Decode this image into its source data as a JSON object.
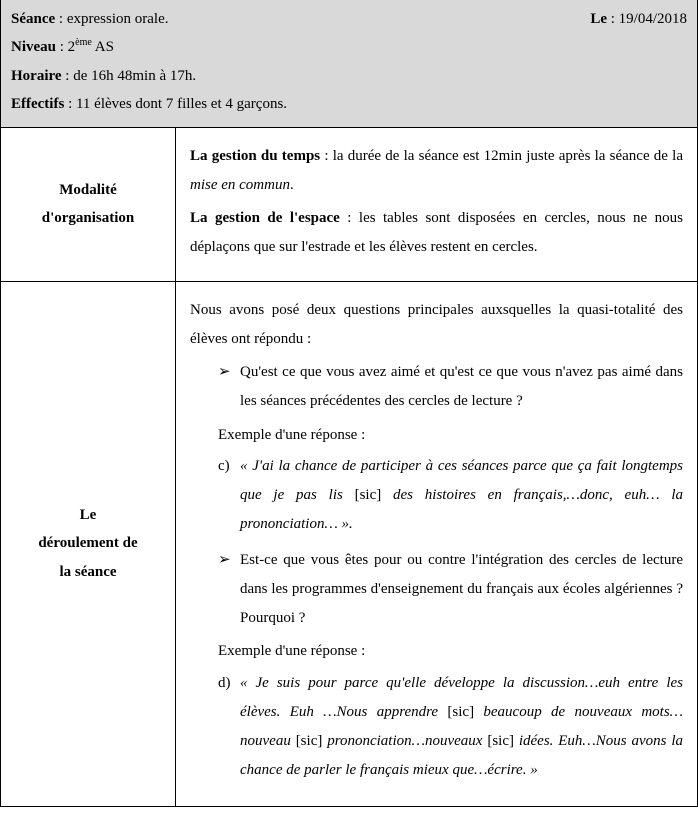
{
  "header": {
    "seance_label": "Séance",
    "seance_value": ": expression orale.",
    "date_label": "Le",
    "date_value": ": 19/04/2018",
    "niveau_label": "Niveau",
    "niveau_value": ": 2",
    "niveau_sup": "ème",
    "niveau_tail": " AS",
    "horaire_label": "Horaire",
    "horaire_value": ": de 16h 48min à 17h.",
    "effectifs_label": "Effectifs",
    "effectifs_value": ": 11 élèves dont 7 filles et 4 garçons."
  },
  "rows": {
    "r1": {
      "title_l1": "Modalité",
      "title_l2": "d'organisation",
      "p1_bold": "La gestion du temps",
      "p1_rest": " : la durée de la séance  est 12min juste après la séance de la ",
      "p1_italic": "mise en commun",
      "p1_end": ".",
      "p2_bold": "La gestion de l'espace",
      "p2_rest": " : les tables sont disposées en cercles, nous ne nous déplaçons que sur l'estrade et les élèves restent en cercles."
    },
    "r2": {
      "title_l1": "Le",
      "title_l2": "déroulement de",
      "title_l3": "la séance",
      "intro": "Nous  avons posé deux questions principales auxsquelles la quasi-totalité des élèves ont répondu :",
      "q1": "Qu'est ce que vous avez aimé et qu'est ce que vous n'avez pas aimé dans les séances précédentes des cercles de lecture ?",
      "ex_label1": "Exemple d'une réponse :",
      "c_letter": "c)",
      "c_text_1": "« J'ai la chance de participer à ces séances parce que ça fait longtemps que je pas lis ",
      "c_sic1": "[sic]",
      "c_text_2": " des histoires en français,…donc, euh… la prononciation… ».",
      "q2": "Est-ce que vous êtes pour ou contre l'intégration des cercles de lecture dans les programmes d'enseignement du français aux écoles algériennes ? Pourquoi ?",
      "ex_label2": "Exemple d'une réponse :",
      "d_letter": "d)",
      "d_text_1": "« Je suis pour parce qu'elle développe la discussion…euh entre les élèves. Euh …Nous apprendre ",
      "d_sic1": "[sic]",
      "d_text_2": " beaucoup de nouveaux mots… nouveau ",
      "d_sic2": "[sic]",
      "d_text_3": " prononciation…nouveaux ",
      "d_sic3": "[sic]",
      "d_text_4": "  idées. Euh…Nous avons la chance de parler le français mieux que…écrire. »"
    }
  }
}
